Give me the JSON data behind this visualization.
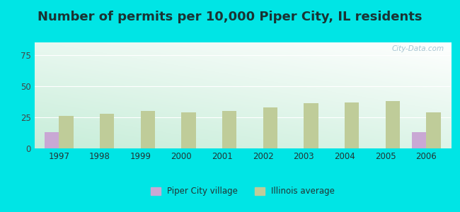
{
  "title": "Number of permits per 10,000 Piper City, IL residents",
  "years": [
    1997,
    1998,
    1999,
    2000,
    2001,
    2002,
    2003,
    2004,
    2005,
    2006
  ],
  "piper_city": [
    13,
    0,
    0,
    0,
    0,
    0,
    0,
    0,
    0,
    13
  ],
  "illinois_avg": [
    26,
    28,
    30,
    29,
    30,
    33,
    36,
    37,
    38,
    29
  ],
  "piper_color": "#c9a8d4",
  "illinois_color": "#bfcc99",
  "background_outer": "#00e5e5",
  "ylim": [
    0,
    85
  ],
  "yticks": [
    0,
    25,
    50,
    75
  ],
  "bar_width": 0.35,
  "title_fontsize": 13,
  "legend_piper": "Piper City village",
  "legend_illinois": "Illinois average",
  "watermark": "City-Data.com"
}
